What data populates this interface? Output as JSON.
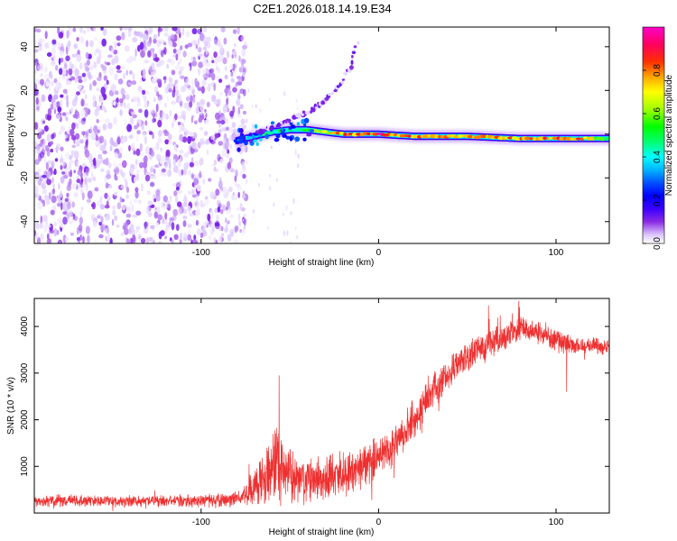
{
  "title": "C2E1.2026.018.14.19.E34",
  "chart_data": [
    {
      "type": "heatmap",
      "name": "spectrogram",
      "xlabel": "Height of straight line (km)",
      "ylabel": "Frequency (Hz)",
      "xlim": [
        -194,
        130
      ],
      "ylim": [
        -50,
        49
      ],
      "x_ticks": [
        -100,
        0,
        100
      ],
      "x_tick_labels": [
        "-100",
        "0",
        "100"
      ],
      "y_ticks": [
        -40,
        -20,
        0,
        20,
        40
      ],
      "y_tick_labels": [
        "-40",
        "-20",
        "0",
        "20",
        "40"
      ],
      "noise_region_x": [
        -194,
        -76
      ],
      "main_ridge": {
        "x": [
          -80,
          -70,
          -60,
          -50,
          -40,
          -30,
          -20,
          -10,
          0,
          20,
          50,
          80,
          110,
          130
        ],
        "freq": [
          -3,
          -1,
          1,
          2,
          2,
          1,
          0,
          0,
          0,
          -1,
          -1,
          -2,
          -2,
          -2
        ],
        "amplitude": [
          0.35,
          0.45,
          0.5,
          0.55,
          0.55,
          0.7,
          0.8,
          0.85,
          0.9,
          0.8,
          0.75,
          0.8,
          0.85,
          0.55
        ]
      },
      "rising_trace": {
        "x": [
          -68,
          -60,
          -50,
          -40,
          -30,
          -20,
          -15,
          -12
        ],
        "freq": [
          1,
          3,
          6,
          10,
          15,
          24,
          33,
          42
        ]
      },
      "colorbar": {
        "label": "Normalized spectral amplitude",
        "range": [
          0,
          1
        ],
        "ticks": [
          0,
          0.2,
          0.4,
          0.6,
          0.8
        ],
        "tick_labels": [
          "0.0",
          "0.2",
          "0.4",
          "0.6",
          "0.8"
        ],
        "colors": [
          "#ffffff",
          "#dcc8ff",
          "#8a2be2",
          "#3a00ff",
          "#0000ff",
          "#0050ff",
          "#00b4ff",
          "#00ffff",
          "#00ff80",
          "#00ff00",
          "#a0ff00",
          "#ffff00",
          "#ffa500",
          "#ff3000",
          "#ff0060",
          "#ff00c8"
        ]
      }
    },
    {
      "type": "line",
      "name": "snr",
      "color": "#ee3030",
      "xlabel": "Height of straight line (km)",
      "ylabel": "SNR (10 * v/v)",
      "xlim": [
        -194,
        130
      ],
      "ylim": [
        0,
        4600
      ],
      "x_ticks": [
        -100,
        0,
        100
      ],
      "x_tick_labels": [
        "-100",
        "0",
        "100"
      ],
      "y_ticks": [
        1000,
        2000,
        3000,
        4000
      ],
      "y_tick_labels": [
        "1000",
        "2000",
        "3000",
        "4000"
      ],
      "envelope": {
        "x": [
          -194,
          -170,
          -150,
          -120,
          -90,
          -78,
          -70,
          -62,
          -58,
          -50,
          -40,
          -30,
          -20,
          -10,
          0,
          10,
          20,
          30,
          40,
          50,
          60,
          70,
          80,
          90,
          100,
          110,
          120,
          130
        ],
        "center": [
          250,
          270,
          260,
          260,
          270,
          300,
          600,
          900,
          1100,
          850,
          700,
          800,
          850,
          950,
          1200,
          1500,
          2000,
          2600,
          3000,
          3400,
          3600,
          3750,
          3950,
          3900,
          3700,
          3600,
          3600,
          3550
        ],
        "spread": [
          150,
          160,
          150,
          150,
          160,
          200,
          500,
          800,
          1100,
          700,
          550,
          550,
          550,
          550,
          500,
          450,
          450,
          450,
          400,
          400,
          400,
          350,
          350,
          300,
          300,
          250,
          200,
          200
        ]
      },
      "notable_peaks": [
        {
          "x": -56,
          "value": 2950
        },
        {
          "x": 62,
          "value": 4450
        },
        {
          "x": 79,
          "value": 4550
        },
        {
          "x": 106,
          "value": 2600,
          "dip": true
        }
      ]
    }
  ]
}
